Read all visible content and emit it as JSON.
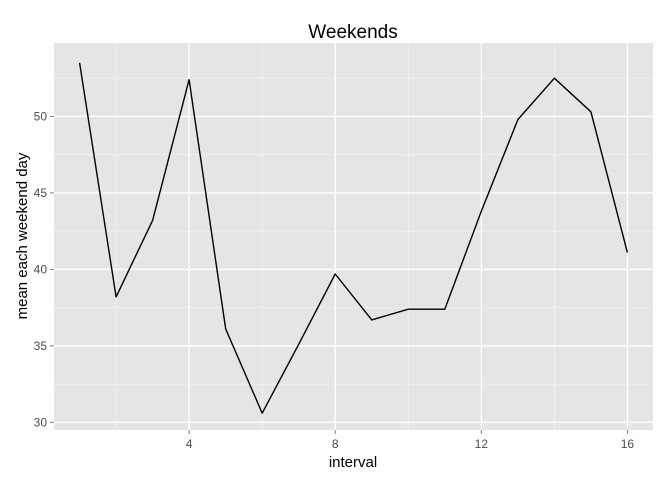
{
  "chart_data": {
    "type": "line",
    "title": "Weekends",
    "xlabel": "interval",
    "ylabel": "mean each weekend day",
    "xlim": [
      0.3,
      16.7
    ],
    "ylim": [
      29.5,
      54.8
    ],
    "x_ticks": [
      4,
      8,
      12,
      16
    ],
    "x_tick_labels": [
      "4",
      "8",
      "12",
      "16"
    ],
    "y_ticks": [
      30,
      35,
      40,
      45,
      50
    ],
    "y_tick_labels": [
      "30",
      "35",
      "40",
      "45",
      "50"
    ],
    "grid": true,
    "x": [
      1,
      2,
      3,
      4,
      5,
      6,
      7,
      8,
      9,
      10,
      11,
      12,
      13,
      14,
      15,
      16
    ],
    "series": [
      {
        "values": [
          53.5,
          38.2,
          43.2,
          52.4,
          36.1,
          30.6,
          35.1,
          39.7,
          36.7,
          37.4,
          37.4,
          43.8,
          49.8,
          52.5,
          50.3,
          41.1
        ]
      }
    ],
    "colors": {
      "panel": "#e5e5e5",
      "grid_major": "#ffffff",
      "grid_minor": "#f2f2f2",
      "line": "#000000"
    }
  }
}
